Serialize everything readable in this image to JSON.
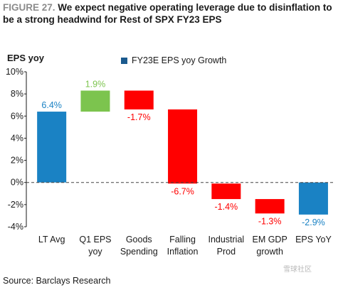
{
  "header": {
    "figure_label": "FIGURE 27.",
    "title": "We expect negative operating leverage due to disinflation to be a strong headwind for Rest of SPX FY23 EPS"
  },
  "source": "Source: Barclays Research",
  "watermark": "雪球社区",
  "chart_data": {
    "type": "bar",
    "subtype": "waterfall",
    "title": "We expect negative operating leverage due to disinflation to be a strong headwind for Rest of SPX FY23 EPS",
    "ylabel": "EPS yoy",
    "ylim": [
      -4,
      10
    ],
    "yticks": [
      "10%",
      "8%",
      "6%",
      "4%",
      "2%",
      "0%",
      "-2%",
      "-4%"
    ],
    "legend": [
      {
        "name": "FY23E EPS yoy Growth",
        "color": "#1b5a8e"
      }
    ],
    "legend_position": "top-center",
    "grid": false,
    "colors": {
      "total": "#1a82c4",
      "increase": "#7cc44e",
      "decrease": "#ff0000"
    },
    "categories": [
      [
        "LT Avg"
      ],
      [
        "Q1 EPS",
        "yoy"
      ],
      [
        "Goods",
        "Spending"
      ],
      [
        "Falling",
        "Inflation"
      ],
      [
        "Industrial",
        "Prod"
      ],
      [
        "EM GDP",
        "growth"
      ],
      [
        "EPS YoY"
      ]
    ],
    "bars": [
      {
        "kind": "total",
        "start": 0,
        "end": 6.4,
        "label": "6.4%"
      },
      {
        "kind": "increase",
        "start": 6.4,
        "end": 8.3,
        "label": "1.9%"
      },
      {
        "kind": "decrease",
        "start": 8.3,
        "end": 6.6,
        "label": "-1.7%"
      },
      {
        "kind": "decrease",
        "start": 6.6,
        "end": -0.1,
        "label": "-6.7%"
      },
      {
        "kind": "decrease",
        "start": -0.1,
        "end": -1.5,
        "label": "-1.4%"
      },
      {
        "kind": "decrease",
        "start": -1.5,
        "end": -2.8,
        "label": "-1.3%"
      },
      {
        "kind": "total",
        "start": 0,
        "end": -2.9,
        "label": "-2.9%"
      }
    ]
  }
}
